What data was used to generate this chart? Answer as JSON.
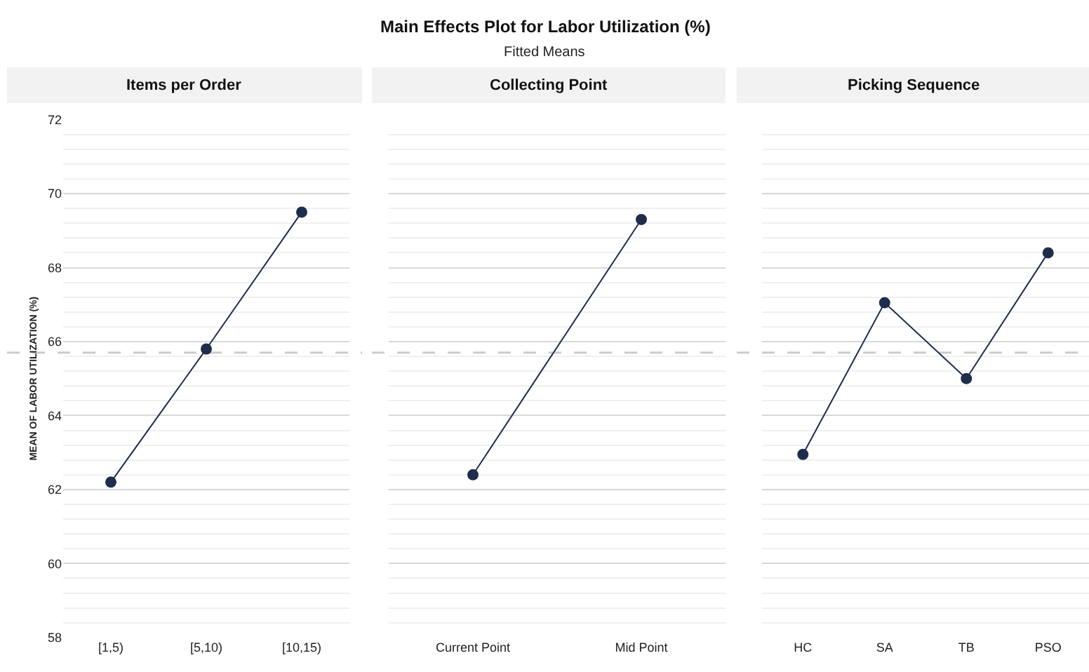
{
  "chart_data": [
    {
      "type": "line",
      "title": "Items per Order",
      "annotations": [
        "Main Effects Plot for Labor Utilization (%)",
        "Fitted Means"
      ],
      "ylabel": "MEAN OF LABOR UTILIZATION (%)",
      "categories": [
        "[1,5)",
        "[5,10)",
        "[10,15)"
      ],
      "series": [
        {
          "color": "#1f2d4d",
          "values": [
            62.2,
            65.8,
            69.5
          ]
        }
      ],
      "ylim": [
        58,
        72
      ],
      "yticks": [
        58,
        60,
        62,
        64,
        66,
        68,
        70,
        72
      ],
      "grid": "y",
      "marker": "circle",
      "line_style": "solid",
      "ref_lines": [
        {
          "axis": "y",
          "value": 65.7,
          "color": "#cccccc",
          "line_style": "dashed"
        }
      ]
    },
    {
      "type": "line",
      "title": "Collecting Point",
      "categories": [
        "Current Point",
        "Mid Point"
      ],
      "series": [
        {
          "color": "#1f2d4d",
          "values": [
            62.4,
            69.3
          ]
        }
      ],
      "ylim": [
        58,
        72
      ],
      "yticks": [
        58,
        60,
        62,
        64,
        66,
        68,
        70,
        72
      ],
      "grid": "y",
      "marker": "circle",
      "line_style": "solid",
      "tick_labels": "x",
      "ref_lines": [
        {
          "axis": "y",
          "value": 65.7,
          "color": "#cccccc",
          "line_style": "dashed"
        }
      ]
    },
    {
      "type": "line",
      "title": "Picking Sequence",
      "categories": [
        "HC",
        "SA",
        "TB",
        "PSO"
      ],
      "series": [
        {
          "color": "#1f2d4d",
          "values": [
            62.95,
            67.05,
            65.0,
            68.4
          ]
        }
      ],
      "ylim": [
        58,
        72
      ],
      "yticks": [
        58,
        60,
        62,
        64,
        66,
        68,
        70,
        72
      ],
      "grid": "y",
      "marker": "circle",
      "line_style": "solid",
      "tick_labels": "x",
      "ref_lines": [
        {
          "axis": "y",
          "value": 65.7,
          "color": "#cccccc",
          "line_style": "dashed"
        }
      ]
    }
  ]
}
